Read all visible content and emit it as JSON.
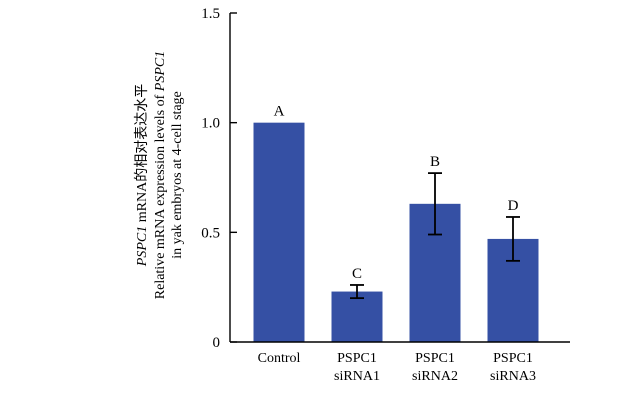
{
  "chart_data": {
    "type": "bar",
    "categories": [
      [
        "Control"
      ],
      [
        "PSPC1",
        "siRNA1"
      ],
      [
        "PSPC1",
        "siRNA2"
      ],
      [
        "PSPC1",
        "siRNA3"
      ]
    ],
    "values": [
      1.0,
      0.23,
      0.63,
      0.47
    ],
    "errors": [
      0,
      0.03,
      0.14,
      0.1
    ],
    "significance": [
      "A",
      "C",
      "B",
      "D"
    ],
    "ylim": [
      0,
      1.5
    ],
    "yticks": [
      "0",
      "0.5",
      "1.0",
      "1.5"
    ],
    "ytick_values": [
      0,
      0.5,
      1.0,
      1.5
    ],
    "ylabel": {
      "line1_italic": "PSPC1",
      "line1_rest": " mRNA的相对表达水平",
      "line2_rest": "Relative mRNA expression levels of ",
      "line2_italic": "PSPC1",
      "line3": "in yak embryos at 4-cell stage"
    },
    "bar_color": "#3550a4",
    "grid": false
  }
}
